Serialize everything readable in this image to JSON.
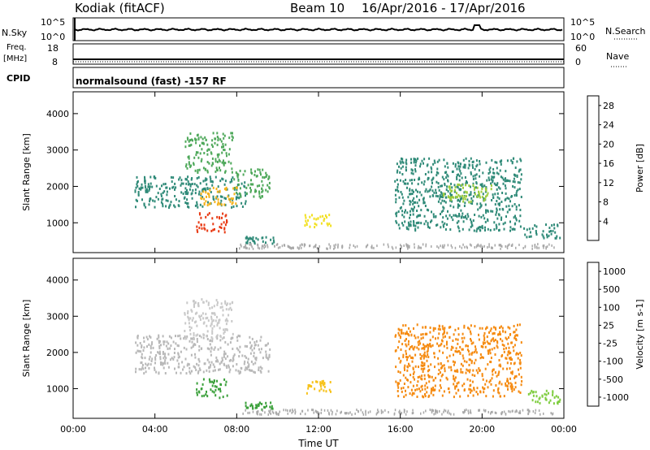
{
  "header": {
    "station": "Kodiak (fitACF)",
    "beam": "Beam 10",
    "dates": "16/Apr/2016 - 17/Apr/2016"
  },
  "strip_nsky": {
    "left_label": "N.Sky",
    "left_tick_hi": "10^5",
    "left_tick_lo": "10^0",
    "right_tick_hi": "10^5",
    "right_tick_lo": "10^0",
    "right_label": "N.Search"
  },
  "strip_freq": {
    "left_label_1": "Freq.",
    "left_label_2": "[MHz]",
    "left_tick_hi": "18",
    "left_tick_lo": "8",
    "right_tick_hi": "60",
    "right_tick_lo": "0",
    "right_label": "Nave"
  },
  "strip_cpid": {
    "left_label": "CPID",
    "mode_text": "normalsound (fast) -157 RF"
  },
  "colors": {
    "power": [
      "#1818e0",
      "#2a5fb0",
      "#2f8a78",
      "#4ea85a",
      "#9ccc3c",
      "#f2e020",
      "#f5b21a",
      "#f07818",
      "#e83a14",
      "#e00000"
    ],
    "velocity": [
      "#e00000",
      "#f04a10",
      "#f58a10",
      "#f7c21a",
      "#b8b8b8",
      "#c9c9c9",
      "#7fcd40",
      "#3aa03a",
      "#2f7f7a",
      "#2a4fb8"
    ],
    "ground_scatter": "#a8a8a8"
  },
  "chart_data": [
    {
      "type": "heatmap",
      "title": "",
      "xlabel": "",
      "ylabel": "Slant Range [km]",
      "x_ticks": [
        "00:00",
        "04:00",
        "08:00",
        "12:00",
        "16:00",
        "20:00",
        "00:00"
      ],
      "x_range_hours": [
        0,
        24
      ],
      "y_ticks": [
        1000,
        2000,
        3000,
        4000
      ],
      "ylim": [
        180,
        4600
      ],
      "colorbar": {
        "label": "Power [dB]",
        "ticks": [
          "4",
          "8",
          "12",
          "16",
          "20",
          "24",
          "28"
        ],
        "range": [
          0,
          30
        ]
      },
      "echo_regions": [
        {
          "t_start": 3.0,
          "t_end": 8.6,
          "r_low": 1450,
          "r_high": 2300,
          "value": 8
        },
        {
          "t_start": 5.4,
          "t_end": 7.8,
          "r_low": 2400,
          "r_high": 3500,
          "value": 10
        },
        {
          "t_start": 6.2,
          "t_end": 8.0,
          "r_low": 1500,
          "r_high": 2000,
          "value": 18
        },
        {
          "t_start": 6.0,
          "t_end": 7.5,
          "r_low": 750,
          "r_high": 1300,
          "value": 25
        },
        {
          "t_start": 7.8,
          "t_end": 9.6,
          "r_low": 1700,
          "r_high": 2500,
          "value": 9
        },
        {
          "t_start": 8.4,
          "t_end": 9.8,
          "r_low": 450,
          "r_high": 650,
          "value": 8
        },
        {
          "t_start": 11.3,
          "t_end": 12.6,
          "r_low": 900,
          "r_high": 1250,
          "value": 17
        },
        {
          "t_start": 15.7,
          "t_end": 21.9,
          "r_low": 800,
          "r_high": 2800,
          "value": 8
        },
        {
          "t_start": 18.0,
          "t_end": 20.5,
          "r_low": 1600,
          "r_high": 2100,
          "value": 13
        },
        {
          "t_start": 22.0,
          "t_end": 23.8,
          "r_low": 600,
          "r_high": 1000,
          "value": 7
        }
      ]
    },
    {
      "type": "heatmap",
      "title": "",
      "xlabel": "Time UT",
      "ylabel": "Slant Range [km]",
      "x_ticks": [
        "00:00",
        "04:00",
        "08:00",
        "12:00",
        "16:00",
        "20:00",
        "00:00"
      ],
      "x_range_hours": [
        0,
        24
      ],
      "y_ticks": [
        1000,
        2000,
        3000,
        4000
      ],
      "ylim": [
        180,
        4600
      ],
      "colorbar": {
        "label": "Velocity [m s-1]",
        "ticks": [
          "1000",
          "500",
          "100",
          "25",
          "-25",
          "-100",
          "-500",
          "-1000"
        ]
      },
      "echo_regions": [
        {
          "t_start": 3.0,
          "t_end": 9.6,
          "r_low": 1450,
          "r_high": 2500,
          "value": 0
        },
        {
          "t_start": 5.4,
          "t_end": 7.8,
          "r_low": 2400,
          "r_high": 3500,
          "value": 20
        },
        {
          "t_start": 6.0,
          "t_end": 7.5,
          "r_low": 750,
          "r_high": 1300,
          "value": 150
        },
        {
          "t_start": 8.4,
          "t_end": 9.8,
          "r_low": 450,
          "r_high": 650,
          "value": 200
        },
        {
          "t_start": 11.3,
          "t_end": 12.6,
          "r_low": 900,
          "r_high": 1250,
          "value": -80
        },
        {
          "t_start": 15.7,
          "t_end": 21.9,
          "r_low": 800,
          "r_high": 2800,
          "value": -200
        },
        {
          "t_start": 22.0,
          "t_end": 23.8,
          "r_low": 600,
          "r_high": 1000,
          "value": 60
        }
      ]
    }
  ]
}
